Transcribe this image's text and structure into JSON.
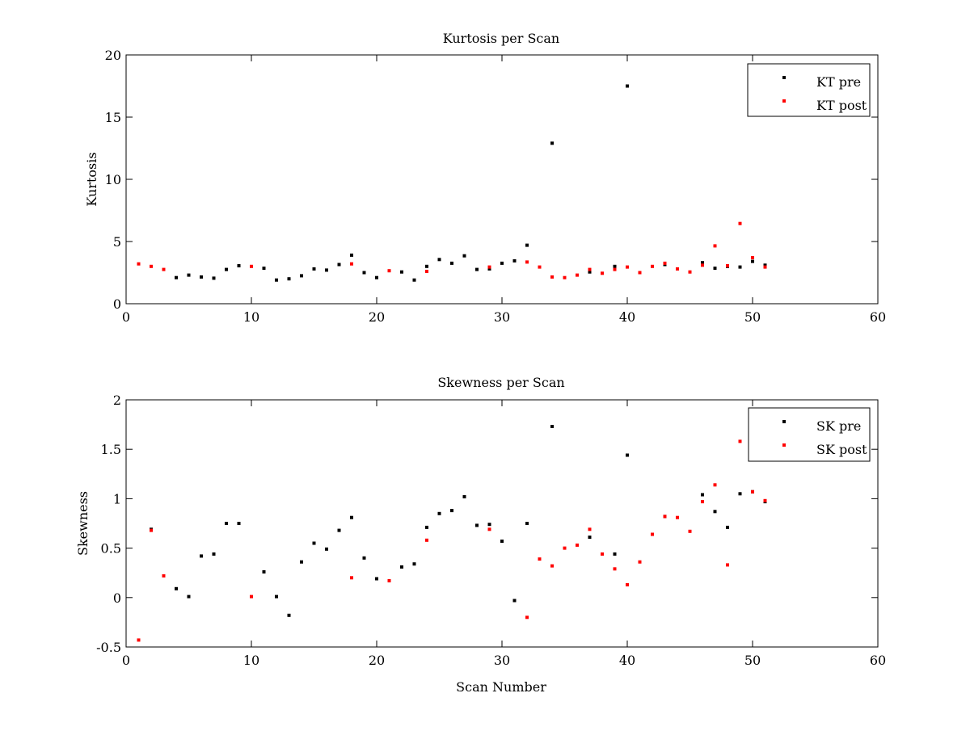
{
  "chart_data": [
    {
      "type": "scatter",
      "title": "Kurtosis per Scan",
      "xlabel": "",
      "ylabel": "Kurtosis",
      "xlim": [
        0,
        60
      ],
      "ylim": [
        0,
        20
      ],
      "xticks": [
        "0",
        "10",
        "20",
        "30",
        "40",
        "50",
        "60"
      ],
      "yticks": [
        "0",
        "5",
        "10",
        "15",
        "20"
      ],
      "grid": false,
      "legend_position": "top-right",
      "series": [
        {
          "name": "KT pre",
          "color": "#000000",
          "x": [
            4,
            5,
            6,
            7,
            8,
            9,
            11,
            12,
            13,
            14,
            15,
            16,
            17,
            18,
            19,
            20,
            22,
            23,
            24,
            25,
            26,
            27,
            28,
            29,
            30,
            31,
            32,
            34,
            37,
            39,
            40,
            43,
            46,
            47,
            48,
            49,
            50,
            51
          ],
          "y": [
            2.1,
            2.3,
            2.15,
            2.05,
            2.75,
            3.05,
            2.85,
            1.9,
            2.0,
            2.25,
            2.8,
            2.7,
            3.15,
            3.9,
            2.5,
            2.1,
            2.55,
            1.9,
            3.0,
            3.55,
            3.25,
            3.85,
            2.75,
            2.8,
            3.25,
            3.45,
            4.7,
            12.9,
            2.55,
            3.0,
            17.5,
            3.15,
            3.3,
            2.85,
            3.0,
            2.95,
            3.4,
            3.1
          ]
        },
        {
          "name": "KT post",
          "color": "#ff0000",
          "x": [
            1,
            2,
            3,
            10,
            18,
            21,
            24,
            29,
            32,
            33,
            34,
            35,
            36,
            37,
            38,
            39,
            40,
            41,
            42,
            43,
            44,
            45,
            46,
            47,
            48,
            49,
            50,
            51
          ],
          "y": [
            3.2,
            3.0,
            2.75,
            3.0,
            3.2,
            2.65,
            2.6,
            2.95,
            3.35,
            2.95,
            2.15,
            2.1,
            2.3,
            2.75,
            2.45,
            2.75,
            2.95,
            2.5,
            3.0,
            3.25,
            2.8,
            2.55,
            3.1,
            4.65,
            3.05,
            6.45,
            3.7,
            2.95
          ]
        }
      ]
    },
    {
      "type": "scatter",
      "title": "Skewness per Scan",
      "xlabel": "Scan Number",
      "ylabel": "Skewness",
      "xlim": [
        0,
        60
      ],
      "ylim": [
        -0.5,
        2
      ],
      "xticks": [
        "0",
        "10",
        "20",
        "30",
        "40",
        "50",
        "60"
      ],
      "yticks": [
        "-0.5",
        "0",
        "0.5",
        "1",
        "1.5",
        "2"
      ],
      "grid": false,
      "legend_position": "top-right",
      "series": [
        {
          "name": "SK pre",
          "color": "#000000",
          "x": [
            2,
            4,
            5,
            6,
            7,
            8,
            9,
            11,
            12,
            13,
            14,
            15,
            16,
            17,
            18,
            19,
            20,
            22,
            23,
            24,
            25,
            26,
            27,
            28,
            29,
            30,
            31,
            32,
            34,
            37,
            39,
            40,
            43,
            46,
            47,
            48,
            49,
            50,
            51
          ],
          "y": [
            0.69,
            0.09,
            0.01,
            0.42,
            0.44,
            0.75,
            0.75,
            0.26,
            0.01,
            -0.18,
            0.36,
            0.55,
            0.49,
            0.68,
            0.81,
            0.4,
            0.19,
            0.31,
            0.34,
            0.71,
            0.85,
            0.88,
            1.02,
            0.73,
            0.74,
            0.57,
            -0.03,
            0.75,
            1.73,
            0.61,
            0.44,
            1.44,
            0.82,
            1.04,
            0.87,
            0.71,
            1.05,
            1.07,
            0.97
          ]
        },
        {
          "name": "SK post",
          "color": "#ff0000",
          "x": [
            1,
            2,
            3,
            10,
            18,
            21,
            24,
            29,
            32,
            33,
            34,
            35,
            36,
            37,
            38,
            39,
            40,
            41,
            42,
            43,
            44,
            45,
            46,
            47,
            48,
            49,
            50,
            51
          ],
          "y": [
            -0.43,
            0.68,
            0.22,
            0.01,
            0.2,
            0.17,
            0.58,
            0.69,
            -0.2,
            0.39,
            0.32,
            0.5,
            0.53,
            0.69,
            0.44,
            0.29,
            0.13,
            0.36,
            0.64,
            0.82,
            0.81,
            0.67,
            0.97,
            1.14,
            0.33,
            1.58,
            1.07,
            0.98
          ]
        }
      ]
    }
  ]
}
